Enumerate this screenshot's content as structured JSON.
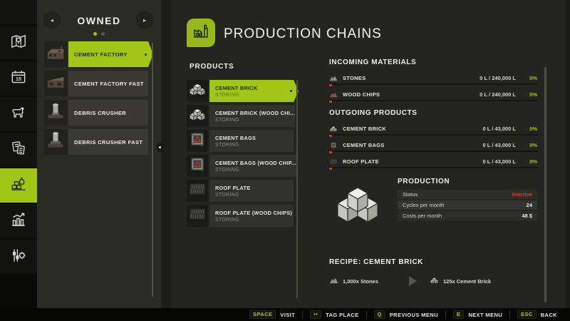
{
  "colors": {
    "accent": "#a2c617",
    "status_red": "#e03a32"
  },
  "sidebar": {
    "items": [
      {
        "icon": "map"
      },
      {
        "icon": "calendar"
      },
      {
        "icon": "animals"
      },
      {
        "icon": "finances"
      },
      {
        "icon": "production",
        "selected": true
      },
      {
        "icon": "statistics"
      },
      {
        "icon": "settings"
      }
    ]
  },
  "owned": {
    "title": "OWNED",
    "page_dots": 2,
    "active_dot": 1,
    "items": [
      {
        "label": "CEMENT FACTORY",
        "thumb": "building-factory",
        "selected": true
      },
      {
        "label": "CEMENT FACTORY FAST",
        "thumb": "building-factory-fast"
      },
      {
        "label": "DEBRIS CRUSHER",
        "thumb": "building-crusher"
      },
      {
        "label": "DEBRIS CRUSHER FAST",
        "thumb": "building-crusher-fast"
      }
    ]
  },
  "header": {
    "title": "PRODUCTION CHAINS",
    "icon": "factory-glyph"
  },
  "products": {
    "title": "PRODUCTS",
    "items": [
      {
        "name": "CEMENT BRICK",
        "status": "STORING",
        "icon": "cement-brick",
        "selected": true
      },
      {
        "name": "CEMENT BRICK (WOOD CHI...",
        "status": "STORING",
        "icon": "cement-brick"
      },
      {
        "name": "CEMENT BAGS",
        "status": "STORING",
        "icon": "cement-bag"
      },
      {
        "name": "CEMENT BAGS (WOOD CHIP...",
        "status": "STORING",
        "icon": "cement-bag"
      },
      {
        "name": "ROOF PLATE",
        "status": "STORING",
        "icon": "roof-plate"
      },
      {
        "name": "ROOF PLATE (WOOD CHIPS)",
        "status": "STORING",
        "icon": "roof-plate"
      }
    ]
  },
  "incoming": {
    "title": "INCOMING MATERIALS",
    "rows": [
      {
        "name": "STONES",
        "value": "0 L / 240,000 L",
        "percent": "0%",
        "icon": "stones"
      },
      {
        "name": "WOOD CHIPS",
        "value": "0 L / 240,000 L",
        "percent": "0%",
        "icon": "wood-chips"
      }
    ]
  },
  "outgoing": {
    "title": "OUTGOING PRODUCTS",
    "rows": [
      {
        "name": "CEMENT BRICK",
        "value": "0 L / 43,000 L",
        "percent": "0%",
        "icon": "cement-brick"
      },
      {
        "name": "CEMENT BAGS",
        "value": "0 L / 43,000 L",
        "percent": "0%",
        "icon": "cement-bag"
      },
      {
        "name": "ROOF PLATE",
        "value": "0 L / 43,000 L",
        "percent": "0%",
        "icon": "roof-plate"
      }
    ]
  },
  "production": {
    "title": "PRODUCTION",
    "rows": [
      {
        "label": "Status",
        "value": "Inactive",
        "value_color": "#e03a32"
      },
      {
        "label": "Cycles per month",
        "value": "24"
      },
      {
        "label": "Costs per month",
        "value": "48 $"
      }
    ]
  },
  "recipe": {
    "title": "RECIPE: CEMENT BRICK",
    "input": {
      "qty": "1,000x Stones",
      "icon": "stones"
    },
    "output": {
      "qty": "125x Cement Brick",
      "icon": "cement-brick"
    }
  },
  "bottom_bar": {
    "items": [
      {
        "key": "SPACE",
        "label": "VISIT"
      },
      {
        "key": "••",
        "label": "TAG PLACE"
      },
      {
        "key": "Q",
        "label": "PREVIOUS MENU"
      },
      {
        "key": "E",
        "label": "NEXT MENU"
      },
      {
        "key": "ESC",
        "label": "BACK"
      }
    ]
  }
}
